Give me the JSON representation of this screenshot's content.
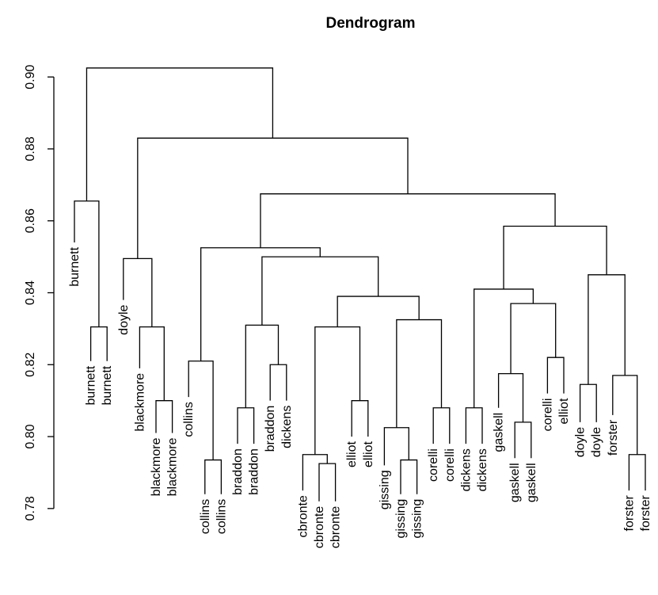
{
  "chart_data": {
    "type": "dendrogram",
    "title": "Dendrogram",
    "xlabel": "",
    "ylabel": "",
    "ylim": [
      0.776,
      0.904
    ],
    "yticks": [
      0.78,
      0.8,
      0.82,
      0.84,
      0.86,
      0.88,
      0.9
    ],
    "ytick_labels": [
      "0.78",
      "0.80",
      "0.82",
      "0.84",
      "0.86",
      "0.88",
      "0.90"
    ],
    "leaves": [
      {
        "label": "burnett",
        "height": 0.854
      },
      {
        "label": "burnett",
        "height": 0.821
      },
      {
        "label": "burnett",
        "height": 0.821
      },
      {
        "label": "doyle",
        "height": 0.838
      },
      {
        "label": "blackmore",
        "height": 0.819
      },
      {
        "label": "blackmore",
        "height": 0.801
      },
      {
        "label": "blackmore",
        "height": 0.801
      },
      {
        "label": "collins",
        "height": 0.811
      },
      {
        "label": "collins",
        "height": 0.784
      },
      {
        "label": "collins",
        "height": 0.784
      },
      {
        "label": "braddon",
        "height": 0.798
      },
      {
        "label": "braddon",
        "height": 0.798
      },
      {
        "label": "braddon",
        "height": 0.81
      },
      {
        "label": "dickens",
        "height": 0.81
      },
      {
        "label": "cbronte",
        "height": 0.785
      },
      {
        "label": "cbronte",
        "height": 0.782
      },
      {
        "label": "cbronte",
        "height": 0.782
      },
      {
        "label": "elliot",
        "height": 0.8
      },
      {
        "label": "elliot",
        "height": 0.8
      },
      {
        "label": "gissing",
        "height": 0.792
      },
      {
        "label": "gissing",
        "height": 0.784
      },
      {
        "label": "gissing",
        "height": 0.784
      },
      {
        "label": "corelli",
        "height": 0.798
      },
      {
        "label": "corelli",
        "height": 0.798
      },
      {
        "label": "dickens",
        "height": 0.798
      },
      {
        "label": "dickens",
        "height": 0.798
      },
      {
        "label": "gaskell",
        "height": 0.808
      },
      {
        "label": "gaskell",
        "height": 0.794
      },
      {
        "label": "gaskell",
        "height": 0.794
      },
      {
        "label": "corelli",
        "height": 0.812
      },
      {
        "label": "elliot",
        "height": 0.812
      },
      {
        "label": "doyle",
        "height": 0.804
      },
      {
        "label": "doyle",
        "height": 0.804
      },
      {
        "label": "forster",
        "height": 0.806
      },
      {
        "label": "forster",
        "height": 0.785
      },
      {
        "label": "forster",
        "height": 0.785
      }
    ],
    "merges": [
      {
        "left": -2,
        "right": -3,
        "height": 0.8305
      },
      {
        "left": -1,
        "right": 1,
        "height": 0.8655
      },
      {
        "left": -6,
        "right": -7,
        "height": 0.81
      },
      {
        "left": -5,
        "right": 3,
        "height": 0.8305
      },
      {
        "left": -4,
        "right": 4,
        "height": 0.8495
      },
      {
        "left": -9,
        "right": -10,
        "height": 0.7935
      },
      {
        "left": -8,
        "right": 6,
        "height": 0.821
      },
      {
        "left": -11,
        "right": -12,
        "height": 0.808
      },
      {
        "left": -13,
        "right": -14,
        "height": 0.82
      },
      {
        "left": 8,
        "right": 9,
        "height": 0.831
      },
      {
        "left": -16,
        "right": -17,
        "height": 0.7925
      },
      {
        "left": -15,
        "right": 11,
        "height": 0.795
      },
      {
        "left": -18,
        "right": -19,
        "height": 0.81
      },
      {
        "left": 12,
        "right": 13,
        "height": 0.8305
      },
      {
        "left": -21,
        "right": -22,
        "height": 0.7935
      },
      {
        "left": -20,
        "right": 15,
        "height": 0.8025
      },
      {
        "left": -23,
        "right": -24,
        "height": 0.808
      },
      {
        "left": 16,
        "right": 17,
        "height": 0.8325
      },
      {
        "left": 14,
        "right": 18,
        "height": 0.839
      },
      {
        "left": 10,
        "right": 19,
        "height": 0.85
      },
      {
        "left": 7,
        "right": 20,
        "height": 0.8525
      },
      {
        "left": -25,
        "right": -26,
        "height": 0.808
      },
      {
        "left": -28,
        "right": -29,
        "height": 0.804
      },
      {
        "left": -27,
        "right": 23,
        "height": 0.8175
      },
      {
        "left": -30,
        "right": -31,
        "height": 0.822
      },
      {
        "left": 24,
        "right": 25,
        "height": 0.837
      },
      {
        "left": 22,
        "right": 26,
        "height": 0.841
      },
      {
        "left": -32,
        "right": -33,
        "height": 0.8145
      },
      {
        "left": -35,
        "right": -36,
        "height": 0.795
      },
      {
        "left": -34,
        "right": 29,
        "height": 0.817
      },
      {
        "left": 28,
        "right": 30,
        "height": 0.845
      },
      {
        "left": 27,
        "right": 31,
        "height": 0.8585
      },
      {
        "left": 21,
        "right": 32,
        "height": 0.8675
      },
      {
        "left": 5,
        "right": 33,
        "height": 0.883
      },
      {
        "left": 2,
        "right": 34,
        "height": 0.9025
      }
    ]
  }
}
